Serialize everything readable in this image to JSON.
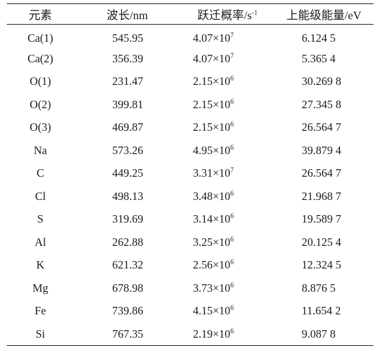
{
  "table": {
    "headers": {
      "element": "元素",
      "wavelength": "波长/nm",
      "probability": "跃迁概率/s",
      "probability_sup": "-1",
      "energy": "上能级能量/eV"
    },
    "rows": [
      {
        "element": "Ca(1)",
        "wavelength": "545.95",
        "prob_mantissa": "4.07",
        "prob_times": "×10",
        "prob_exp": "7",
        "energy": "6.124 5"
      },
      {
        "element": "Ca(2)",
        "wavelength": "356.39",
        "prob_mantissa": "4.07",
        "prob_times": "×10",
        "prob_exp": "7",
        "energy": "5.365 4"
      },
      {
        "element": "O(1)",
        "wavelength": "231.47",
        "prob_mantissa": "2.15",
        "prob_times": "×10",
        "prob_exp": "6",
        "energy": "30.269 8"
      },
      {
        "element": "O(2)",
        "wavelength": "399.81",
        "prob_mantissa": "2.15",
        "prob_times": "×10",
        "prob_exp": "6",
        "energy": "27.345 8"
      },
      {
        "element": "O(3)",
        "wavelength": "469.87",
        "prob_mantissa": "2.15",
        "prob_times": "×10",
        "prob_exp": "6",
        "energy": "26.564 7"
      },
      {
        "element": "Na",
        "wavelength": "573.26",
        "prob_mantissa": "4.95",
        "prob_times": "×10",
        "prob_exp": "6",
        "energy": "39.879 4"
      },
      {
        "element": "C",
        "wavelength": "449.25",
        "prob_mantissa": "3.31",
        "prob_times": "×10",
        "prob_exp": "7",
        "energy": "26.564 7"
      },
      {
        "element": "Cl",
        "wavelength": "498.13",
        "prob_mantissa": "3.48",
        "prob_times": "×10",
        "prob_exp": "6",
        "energy": "21.968 7"
      },
      {
        "element": "S",
        "wavelength": "319.69",
        "prob_mantissa": "3.14",
        "prob_times": "×10",
        "prob_exp": "6",
        "energy": "19.589 7"
      },
      {
        "element": "Al",
        "wavelength": "262.88",
        "prob_mantissa": "3.25",
        "prob_times": "×10",
        "prob_exp": "6",
        "energy": "20.125 4"
      },
      {
        "element": "K",
        "wavelength": "621.32",
        "prob_mantissa": "2.56",
        "prob_times": "×10",
        "prob_exp": "6",
        "energy": "12.324 5"
      },
      {
        "element": "Mg",
        "wavelength": "678.98",
        "prob_mantissa": "3.73",
        "prob_times": "×10",
        "prob_exp": "6",
        "energy": "8.876 5"
      },
      {
        "element": "Fe",
        "wavelength": "739.86",
        "prob_mantissa": "4.15",
        "prob_times": "×10",
        "prob_exp": "6",
        "energy": "11.654 2"
      },
      {
        "element": "Si",
        "wavelength": "767.35",
        "prob_mantissa": "2.19",
        "prob_times": "×10",
        "prob_exp": "6",
        "energy": "9.087 8"
      }
    ]
  }
}
